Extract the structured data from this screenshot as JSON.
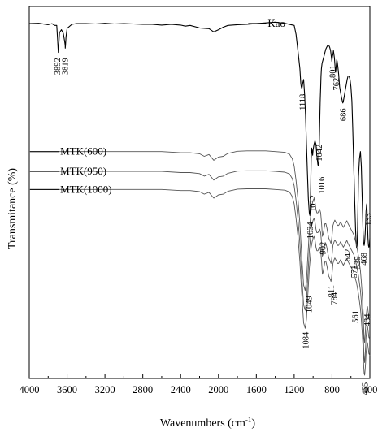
{
  "chart_data": {
    "type": "line",
    "title": "",
    "xlabel": "Wavenumbers (cm",
    "xlabel_sup": "-1",
    "xlabel_close": ")",
    "ylabel": "Transmitance (%)",
    "xlim": [
      4000,
      400
    ],
    "x_reversed": true,
    "grid": false,
    "x_ticks": [
      4000,
      3600,
      3200,
      2800,
      2400,
      2000,
      1600,
      1200,
      800,
      400
    ],
    "x_tick_labels": [
      "4000",
      "3600",
      "3200",
      "2800",
      "2400",
      "2000",
      "1600",
      "1200",
      "800",
      "400"
    ],
    "y_units": "arbitrary transmittance, offset traces",
    "ylim": [
      0,
      100
    ],
    "series": [
      {
        "name": "Kao",
        "color": "#000000",
        "x": [
          4000,
          3900,
          3800,
          3760,
          3730,
          3710,
          3700,
          3696,
          3692,
          3688,
          3680,
          3660,
          3640,
          3625,
          3620,
          3619,
          3617,
          3612,
          3600,
          3550,
          3500,
          3400,
          3300,
          3200,
          3100,
          3000,
          2900,
          2800,
          2700,
          2600,
          2500,
          2400,
          2350,
          2300,
          2200,
          2100,
          2050,
          2000,
          1950,
          1900,
          1800,
          1700,
          1600,
          1500,
          1400,
          1300,
          1200,
          1180,
          1160,
          1140,
          1130,
          1125,
          1118,
          1110,
          1100,
          1090,
          1080,
          1070,
          1060,
          1050,
          1040,
          1034,
          1030,
          1025,
          1020,
          1015,
          1012,
          1005,
          1000,
          990,
          980,
          970,
          960,
          950,
          945,
          942,
          940,
          935,
          930,
          925,
          920,
          916,
          912,
          905,
          895,
          885,
          875,
          865,
          855,
          845,
          835,
          825,
          815,
          808,
          801,
          795,
          790,
          785,
          775,
          770,
          765,
          762,
          755,
          750,
          745,
          740,
          730,
          720,
          710,
          700,
          690,
          686,
          680,
          670,
          660,
          650,
          640,
          630,
          620,
          610,
          600,
          590,
          580,
          570,
          560,
          550,
          545,
          541,
          539,
          535,
          530,
          525,
          520,
          510,
          500,
          490,
          480,
          472,
          468,
          465,
          460,
          455,
          450,
          445,
          440,
          435,
          433,
          430,
          425,
          420,
          415,
          410,
          405,
          400
        ],
        "y": [
          97.5,
          97.6,
          97.2,
          97.5,
          97.0,
          97.0,
          93.0,
          90.8,
          89.5,
          91.5,
          95.0,
          95.8,
          94.8,
          92.5,
          91.5,
          90.7,
          91.5,
          93.8,
          96.2,
          97.3,
          97.5,
          97.5,
          97.4,
          97.6,
          97.4,
          97.5,
          97.4,
          97.3,
          97.3,
          97.1,
          97.3,
          97.1,
          96.8,
          97.0,
          96.3,
          96.1,
          95.2,
          95.8,
          96.5,
          97.0,
          97.2,
          97.3,
          97.5,
          97.7,
          97.9,
          97.6,
          97.0,
          94.5,
          90.0,
          85.0,
          81.0,
          80.0,
          79.5,
          81.0,
          82.0,
          78.0,
          72.0,
          64.0,
          56.0,
          49.0,
          45.0,
          44.3,
          46.0,
          53.0,
          60.0,
          63.0,
          62.5,
          61.0,
          62.5,
          64.0,
          65.0,
          64.0,
          61.0,
          58.5,
          58.0,
          58.5,
          60.0,
          64.0,
          70.0,
          76.0,
          80.0,
          83.0,
          85.0,
          86.5,
          87.5,
          88.5,
          89.5,
          90.5,
          91.0,
          91.5,
          91.5,
          91.0,
          90.0,
          88.5,
          87.0,
          88.5,
          89.0,
          90.0,
          88.0,
          86.5,
          84.5,
          84.0,
          86.0,
          87.5,
          87.0,
          86.0,
          83.5,
          80.0,
          78.5,
          77.0,
          76.0,
          75.5,
          76.0,
          77.5,
          79.0,
          80.5,
          82.0,
          83.0,
          83.0,
          82.0,
          80.0,
          76.0,
          68.0,
          58.0,
          48.0,
          40.0,
          37.0,
          35.5,
          35.2,
          35.8,
          40.0,
          48.0,
          55.0,
          60.0,
          62.0,
          58.0,
          48.0,
          40.0,
          37.5,
          36.5,
          36.0,
          37.0,
          39.0,
          42.0,
          45.5,
          47.0,
          47.5,
          46.0,
          42.0,
          38.0,
          36.0,
          35.5,
          36.0,
          38.0
        ]
      },
      {
        "name": "MTK(600)",
        "color": "#555555",
        "x": [
          4000,
          3800,
          3600,
          3400,
          3200,
          3000,
          2800,
          2600,
          2400,
          2300,
          2200,
          2150,
          2100,
          2050,
          2000,
          1950,
          1900,
          1800,
          1700,
          1600,
          1500,
          1400,
          1300,
          1250,
          1220,
          1200,
          1180,
          1160,
          1140,
          1120,
          1100,
          1084,
          1070,
          1060,
          1049,
          1040,
          1030,
          1020,
          1010,
          1000,
          990,
          980,
          970,
          960,
          950,
          940,
          930,
          920,
          910,
          902,
          895,
          885,
          875,
          865,
          855,
          845,
          835,
          825,
          815,
          811,
          805,
          800,
          795,
          790,
          784,
          778,
          770,
          760,
          750,
          740,
          730,
          720,
          710,
          700,
          690,
          680,
          670,
          660,
          650,
          645,
          642,
          638,
          630,
          620,
          610,
          600,
          590,
          580,
          571,
          565,
          561,
          555,
          550,
          540,
          530,
          520,
          510,
          500,
          490,
          480,
          470,
          465,
          460,
          455,
          450,
          445,
          440,
          434,
          430,
          425,
          420,
          415,
          410,
          400
        ],
        "y": [
          62.0,
          62.0,
          62.0,
          62.0,
          62.0,
          62.0,
          62.0,
          62.0,
          61.7,
          61.7,
          61.4,
          60.7,
          61.2,
          59.6,
          60.5,
          60.7,
          61.5,
          62.1,
          62.2,
          62.2,
          62.2,
          62.0,
          61.8,
          61.3,
          60.0,
          58.0,
          54.0,
          49.0,
          42.0,
          33.0,
          25.0,
          23.5,
          26.0,
          31.0,
          36.0,
          40.0,
          43.0,
          46.0,
          47.5,
          48.5,
          49.0,
          48.0,
          46.0,
          45.0,
          45.0,
          45.5,
          46.0,
          45.0,
          42.0,
          38.5,
          39.0,
          40.5,
          42.0,
          42.0,
          41.0,
          39.5,
          38.0,
          37.5,
          36.8,
          36.5,
          37.5,
          38.5,
          40.0,
          41.5,
          42.0,
          42.5,
          43.0,
          42.5,
          42.0,
          41.5,
          41.5,
          42.0,
          42.5,
          42.0,
          41.5,
          41.0,
          41.5,
          42.0,
          42.5,
          42.8,
          42.8,
          42.5,
          42.0,
          41.5,
          41.0,
          40.5,
          40.0,
          39.5,
          39.0,
          38.5,
          38.0,
          37.5,
          37.0,
          36.0,
          34.5,
          33.0,
          31.0,
          29.0,
          26.0,
          22.0,
          17.0,
          13.0,
          10.0,
          9.0,
          11.0,
          13.5,
          16.0,
          17.5,
          18.5,
          19.0,
          18.0,
          17.0,
          16.0,
          15.5
        ]
      },
      {
        "name": "MTK(950)",
        "color": "#555555",
        "x": [
          4000,
          3800,
          3600,
          3400,
          3200,
          3000,
          2800,
          2600,
          2400,
          2300,
          2200,
          2150,
          2100,
          2050,
          2000,
          1950,
          1900,
          1800,
          1700,
          1600,
          1500,
          1400,
          1300,
          1250,
          1220,
          1200,
          1180,
          1160,
          1140,
          1120,
          1100,
          1084,
          1070,
          1060,
          1049,
          1040,
          1030,
          1020,
          1010,
          1000,
          990,
          980,
          970,
          960,
          950,
          940,
          930,
          920,
          910,
          902,
          895,
          885,
          875,
          865,
          855,
          845,
          835,
          825,
          815,
          811,
          805,
          800,
          795,
          790,
          784,
          778,
          770,
          760,
          750,
          740,
          730,
          720,
          710,
          700,
          690,
          680,
          670,
          660,
          650,
          645,
          642,
          638,
          630,
          620,
          610,
          600,
          590,
          580,
          571,
          565,
          561,
          555,
          550,
          540,
          530,
          520,
          510,
          500,
          490,
          480,
          470,
          465,
          460,
          455,
          450,
          445,
          440,
          434,
          430,
          425,
          420,
          415,
          410,
          400
        ],
        "y": [
          56.5,
          56.5,
          56.5,
          56.5,
          56.5,
          56.5,
          56.5,
          56.5,
          56.2,
          56.2,
          55.9,
          55.2,
          55.7,
          54.1,
          55.0,
          55.2,
          56.0,
          56.6,
          56.7,
          56.7,
          56.7,
          56.5,
          56.3,
          55.8,
          54.5,
          52.5,
          48.5,
          43.5,
          36.5,
          27.5,
          19.5,
          18.0,
          20.5,
          25.5,
          30.5,
          34.5,
          37.5,
          40.5,
          42.0,
          43.0,
          43.5,
          42.5,
          40.5,
          39.5,
          39.5,
          40.0,
          40.5,
          39.5,
          36.5,
          33.0,
          33.5,
          35.0,
          36.5,
          36.5,
          35.5,
          34.0,
          32.5,
          32.0,
          31.3,
          31.0,
          32.0,
          33.0,
          34.5,
          36.0,
          36.5,
          37.0,
          37.5,
          37.0,
          36.5,
          36.0,
          36.0,
          36.5,
          37.0,
          36.5,
          36.0,
          35.5,
          36.0,
          36.5,
          37.0,
          37.3,
          37.3,
          37.0,
          36.5,
          36.0,
          35.5,
          35.0,
          34.5,
          34.0,
          33.5,
          33.0,
          32.5,
          32.0,
          31.5,
          30.5,
          29.0,
          27.5,
          25.5,
          23.5,
          20.5,
          16.5,
          11.5,
          7.5,
          4.5,
          3.5,
          5.5,
          8.0,
          10.5,
          12.0,
          13.0,
          13.5,
          12.5,
          11.5,
          10.5,
          10.0
        ]
      },
      {
        "name": "MTK(1000)",
        "color": "#555555",
        "x": [
          4000,
          3800,
          3600,
          3400,
          3200,
          3000,
          2800,
          2600,
          2400,
          2300,
          2200,
          2150,
          2100,
          2050,
          2000,
          1950,
          1900,
          1800,
          1700,
          1600,
          1500,
          1400,
          1300,
          1250,
          1220,
          1200,
          1180,
          1160,
          1140,
          1120,
          1100,
          1084,
          1070,
          1060,
          1049,
          1040,
          1030,
          1020,
          1010,
          1000,
          990,
          980,
          970,
          960,
          950,
          940,
          930,
          920,
          910,
          902,
          895,
          885,
          875,
          865,
          855,
          845,
          835,
          825,
          815,
          811,
          805,
          800,
          795,
          790,
          784,
          778,
          770,
          760,
          750,
          740,
          730,
          720,
          710,
          700,
          690,
          680,
          670,
          660,
          650,
          645,
          642,
          638,
          630,
          620,
          610,
          600,
          590,
          580,
          571,
          565,
          561,
          555,
          550,
          540,
          530,
          520,
          510,
          500,
          490,
          480,
          470,
          465,
          460,
          455,
          450,
          445,
          440,
          434,
          430,
          425,
          420,
          415,
          410,
          400
        ],
        "y": [
          51.5,
          51.5,
          51.5,
          51.5,
          51.5,
          51.5,
          51.5,
          51.5,
          51.2,
          51.2,
          50.9,
          50.2,
          50.7,
          49.1,
          50.0,
          50.2,
          51.0,
          51.6,
          51.7,
          51.7,
          51.7,
          51.5,
          51.3,
          50.8,
          49.5,
          47.5,
          43.5,
          38.5,
          31.5,
          22.5,
          14.5,
          13.0,
          15.5,
          20.5,
          25.5,
          29.5,
          32.5,
          35.5,
          37.0,
          38.0,
          38.5,
          37.5,
          35.5,
          34.5,
          34.5,
          35.0,
          35.5,
          34.5,
          31.5,
          28.0,
          28.5,
          30.0,
          31.5,
          31.5,
          30.5,
          29.0,
          27.5,
          27.0,
          26.3,
          26.0,
          27.0,
          28.0,
          29.5,
          31.0,
          31.5,
          32.0,
          32.5,
          32.0,
          31.5,
          31.0,
          31.0,
          31.5,
          32.0,
          31.5,
          31.0,
          30.5,
          31.0,
          31.5,
          32.0,
          32.3,
          32.3,
          32.0,
          31.5,
          31.0,
          30.5,
          30.0,
          29.5,
          29.0,
          28.5,
          28.0,
          27.5,
          27.0,
          26.5,
          25.5,
          24.0,
          22.5,
          20.5,
          18.5,
          15.5,
          11.5,
          6.5,
          2.5,
          0.5,
          0.0,
          1.5,
          3.5,
          6.0,
          7.5,
          8.5,
          9.0,
          8.0,
          7.0,
          6.0,
          5.5
        ]
      }
    ],
    "series_labels": [
      {
        "text": "Kao",
        "anchor_x": 1600,
        "anchor_y": 98.0
      },
      {
        "text": "MTK(600)",
        "anchor_x": 3690,
        "anchor_y": 62.0
      },
      {
        "text": "MTK(950)",
        "anchor_x": 3690,
        "anchor_y": 56.5
      },
      {
        "text": "MTK(1000)",
        "anchor_x": 3690,
        "anchor_y": 51.5
      }
    ],
    "peak_annotations": [
      {
        "text": "3892",
        "x": 3710,
        "y": 88.0
      },
      {
        "text": "3819",
        "x": 3625,
        "y": 88.0
      },
      {
        "text": "1118",
        "x": 1118,
        "y": 78.0
      },
      {
        "text": "1042",
        "x": 942,
        "y": 64.0
      },
      {
        "text": "1016",
        "x": 916,
        "y": 55.0
      },
      {
        "text": "1034",
        "x": 1034,
        "y": 42.5
      },
      {
        "text": "801",
        "x": 801,
        "y": 86.0
      },
      {
        "text": "762",
        "x": 762,
        "y": 82.5
      },
      {
        "text": "686",
        "x": 686,
        "y": 74.0
      },
      {
        "text": "539",
        "x": 539,
        "y": 33.0
      },
      {
        "text": "1012",
        "x": 1012,
        "y": 50.0
      },
      {
        "text": "902",
        "x": 902,
        "y": 37.0
      },
      {
        "text": "642",
        "x": 642,
        "y": 35.0
      },
      {
        "text": "571",
        "x": 571,
        "y": 30.5
      },
      {
        "text": "468",
        "x": 468,
        "y": 34.0
      },
      {
        "text": "1049",
        "x": 1049,
        "y": 22.0
      },
      {
        "text": "811",
        "x": 811,
        "y": 25.0
      },
      {
        "text": "784",
        "x": 784,
        "y": 23.0
      },
      {
        "text": "561",
        "x": 561,
        "y": 18.0
      },
      {
        "text": "1084",
        "x": 1084,
        "y": 12.0
      },
      {
        "text": "434",
        "x": 434,
        "y": 17.0
      },
      {
        "text": "455",
        "x": 455,
        "y": -2.0
      },
      {
        "text": "133",
        "x": 420,
        "y": 45.0
      }
    ]
  }
}
